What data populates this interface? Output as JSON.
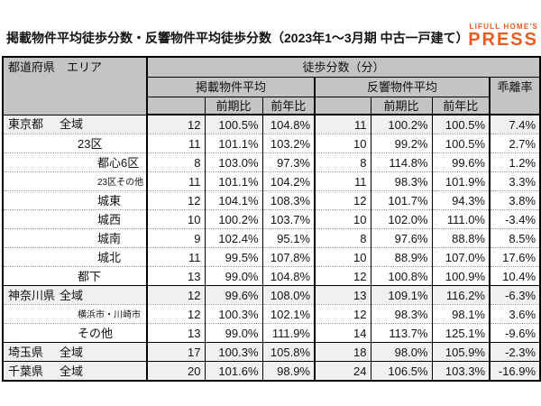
{
  "title": "掲載物件平均徒歩分数・反響物件平均徒歩分数（2023年1～3月期 中古一戸建て）",
  "logo": {
    "line1": "LIFULL HOME'S",
    "line2": "PRESS",
    "brand_color": "#ee5a1e"
  },
  "table": {
    "corner_header": "都道府県　エリア",
    "top_header": "徒歩分数（分）",
    "group_headers": {
      "listed": "掲載物件平均",
      "inquiry": "反響物件平均",
      "divergence": "乖離率"
    },
    "sub_headers": {
      "prev_period": "前期比",
      "prev_year": "前年比"
    },
    "rows": [
      {
        "pref": "東京都",
        "area": "全域",
        "level": 1,
        "small": false,
        "shaded": true,
        "group_start": false,
        "listed": {
          "avg": "12",
          "prev_period": "100.5%",
          "prev_year": "104.8%"
        },
        "inquiry": {
          "avg": "11",
          "prev_period": "100.2%",
          "prev_year": "100.5%"
        },
        "divergence": "7.4%"
      },
      {
        "pref": "",
        "area": "23区",
        "level": 2,
        "small": false,
        "shaded": false,
        "group_start": false,
        "listed": {
          "avg": "11",
          "prev_period": "101.1%",
          "prev_year": "103.2%"
        },
        "inquiry": {
          "avg": "10",
          "prev_period": "99.2%",
          "prev_year": "100.5%"
        },
        "divergence": "2.7%"
      },
      {
        "pref": "",
        "area": "都心6区",
        "level": 3,
        "small": false,
        "shaded": false,
        "group_start": false,
        "listed": {
          "avg": "8",
          "prev_period": "103.0%",
          "prev_year": "97.3%"
        },
        "inquiry": {
          "avg": "8",
          "prev_period": "114.8%",
          "prev_year": "99.6%"
        },
        "divergence": "1.2%"
      },
      {
        "pref": "",
        "area": "23区その他",
        "level": 3,
        "small": true,
        "shaded": false,
        "group_start": false,
        "listed": {
          "avg": "11",
          "prev_period": "101.1%",
          "prev_year": "104.2%"
        },
        "inquiry": {
          "avg": "11",
          "prev_period": "98.3%",
          "prev_year": "101.9%"
        },
        "divergence": "3.3%"
      },
      {
        "pref": "",
        "area": "城東",
        "level": 3,
        "small": false,
        "shaded": false,
        "group_start": false,
        "listed": {
          "avg": "12",
          "prev_period": "104.1%",
          "prev_year": "108.3%"
        },
        "inquiry": {
          "avg": "12",
          "prev_period": "101.7%",
          "prev_year": "94.3%"
        },
        "divergence": "3.8%"
      },
      {
        "pref": "",
        "area": "城西",
        "level": 3,
        "small": false,
        "shaded": false,
        "group_start": false,
        "listed": {
          "avg": "10",
          "prev_period": "100.2%",
          "prev_year": "103.7%"
        },
        "inquiry": {
          "avg": "10",
          "prev_period": "102.0%",
          "prev_year": "111.0%"
        },
        "divergence": "-3.4%"
      },
      {
        "pref": "",
        "area": "城南",
        "level": 3,
        "small": false,
        "shaded": false,
        "group_start": false,
        "listed": {
          "avg": "9",
          "prev_period": "102.4%",
          "prev_year": "95.1%"
        },
        "inquiry": {
          "avg": "8",
          "prev_period": "97.6%",
          "prev_year": "88.8%"
        },
        "divergence": "8.5%"
      },
      {
        "pref": "",
        "area": "城北",
        "level": 3,
        "small": false,
        "shaded": false,
        "group_start": false,
        "listed": {
          "avg": "11",
          "prev_period": "99.5%",
          "prev_year": "107.8%"
        },
        "inquiry": {
          "avg": "10",
          "prev_period": "88.9%",
          "prev_year": "107.0%"
        },
        "divergence": "17.6%"
      },
      {
        "pref": "",
        "area": "都下",
        "level": 2,
        "small": false,
        "shaded": false,
        "group_start": false,
        "listed": {
          "avg": "13",
          "prev_period": "99.0%",
          "prev_year": "104.8%"
        },
        "inquiry": {
          "avg": "12",
          "prev_period": "100.8%",
          "prev_year": "100.9%"
        },
        "divergence": "10.4%"
      },
      {
        "pref": "神奈川県",
        "area": "全域",
        "level": 1,
        "small": false,
        "shaded": true,
        "group_start": true,
        "listed": {
          "avg": "12",
          "prev_period": "99.6%",
          "prev_year": "108.0%"
        },
        "inquiry": {
          "avg": "13",
          "prev_period": "109.1%",
          "prev_year": "116.2%"
        },
        "divergence": "-6.3%"
      },
      {
        "pref": "",
        "area": "横浜市・川崎市",
        "level": 2,
        "small": true,
        "shaded": false,
        "group_start": false,
        "listed": {
          "avg": "12",
          "prev_period": "100.3%",
          "prev_year": "102.1%"
        },
        "inquiry": {
          "avg": "12",
          "prev_period": "98.3%",
          "prev_year": "98.1%"
        },
        "divergence": "3.6%"
      },
      {
        "pref": "",
        "area": "その他",
        "level": 2,
        "small": false,
        "shaded": false,
        "group_start": false,
        "listed": {
          "avg": "13",
          "prev_period": "99.0%",
          "prev_year": "111.9%"
        },
        "inquiry": {
          "avg": "14",
          "prev_period": "113.7%",
          "prev_year": "125.1%"
        },
        "divergence": "-9.6%"
      },
      {
        "pref": "埼玉県",
        "area": "全域",
        "level": 1,
        "small": false,
        "shaded": true,
        "group_start": true,
        "listed": {
          "avg": "17",
          "prev_period": "100.3%",
          "prev_year": "105.8%"
        },
        "inquiry": {
          "avg": "18",
          "prev_period": "98.0%",
          "prev_year": "105.9%"
        },
        "divergence": "-2.3%"
      },
      {
        "pref": "千葉県",
        "area": "全域",
        "level": 1,
        "small": false,
        "shaded": true,
        "group_start": true,
        "listed": {
          "avg": "20",
          "prev_period": "101.6%",
          "prev_year": "98.9%"
        },
        "inquiry": {
          "avg": "24",
          "prev_period": "106.5%",
          "prev_year": "103.3%"
        },
        "divergence": "-16.9%"
      }
    ]
  }
}
